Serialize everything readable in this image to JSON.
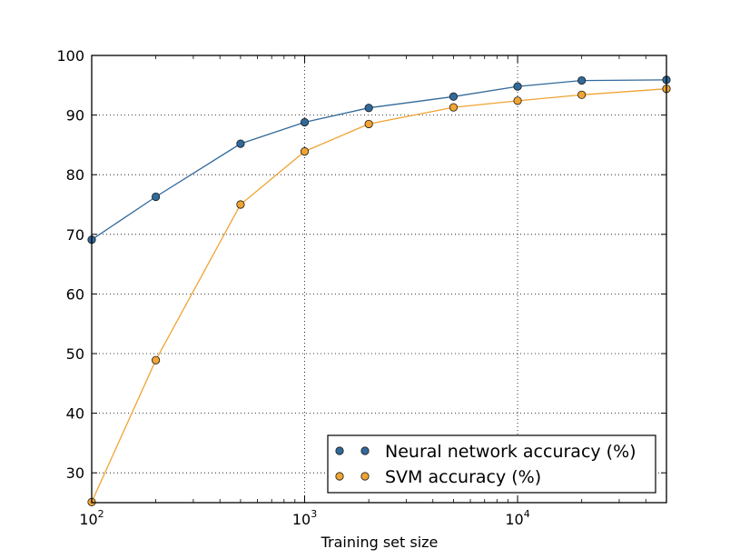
{
  "chart_data": {
    "type": "line",
    "x": [
      100,
      200,
      500,
      1000,
      2000,
      5000,
      10000,
      20000,
      50000
    ],
    "series": [
      {
        "name": "Neural network accuracy (%)",
        "color": "#31699a",
        "values": [
          69.1,
          76.3,
          85.2,
          88.8,
          91.2,
          93.1,
          94.8,
          95.8,
          95.9
        ]
      },
      {
        "name": "SVM accuracy (%)",
        "color": "#f0a434",
        "values": [
          25.1,
          48.9,
          75.0,
          83.9,
          88.5,
          91.3,
          92.4,
          93.4,
          94.4
        ]
      }
    ],
    "xlabel": "Training set size",
    "ylabel": "",
    "x_scale": "log",
    "xlim": [
      100,
      50000
    ],
    "ylim": [
      25,
      100
    ],
    "x_ticks": [
      {
        "value": 100,
        "base": "10",
        "exp": "2"
      },
      {
        "value": 1000,
        "base": "10",
        "exp": "3"
      },
      {
        "value": 10000,
        "base": "10",
        "exp": "4"
      }
    ],
    "y_ticks": [
      30,
      40,
      50,
      60,
      70,
      80,
      90,
      100
    ],
    "y_tick_labels": [
      "30",
      "40",
      "50",
      "60",
      "70",
      "80",
      "90",
      "100"
    ],
    "grid": true,
    "legend_position": "lower-right"
  }
}
